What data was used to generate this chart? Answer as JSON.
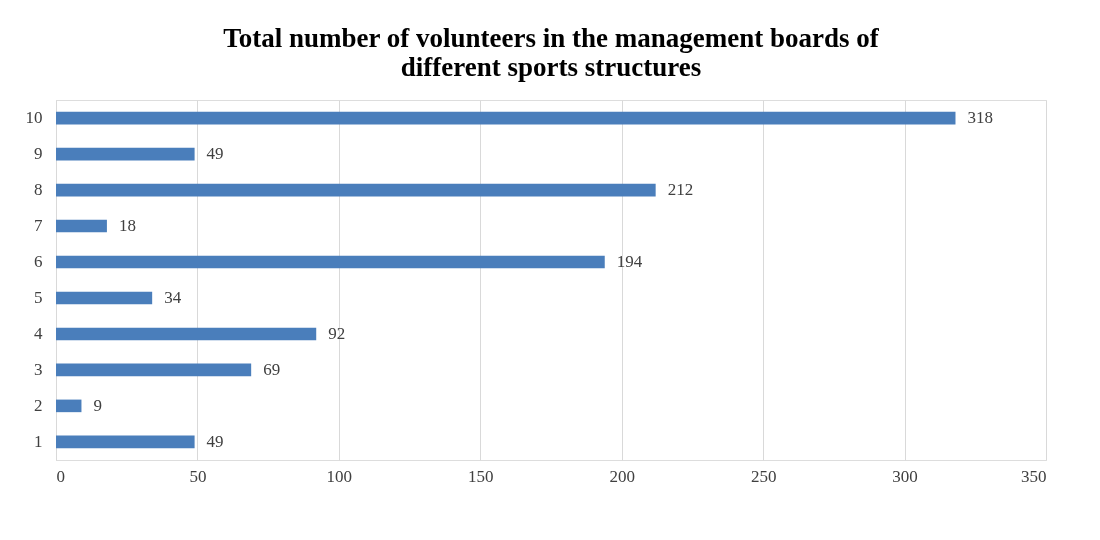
{
  "chart_data": {
    "type": "bar",
    "orientation": "horizontal",
    "title": "Total number of volunteers in the management boards of different sports structures",
    "categories": [
      "10",
      "9",
      "8",
      "7",
      "6",
      "5",
      "4",
      "3",
      "2",
      "1"
    ],
    "values": [
      318,
      49,
      212,
      18,
      194,
      34,
      92,
      69,
      9,
      49
    ],
    "color": "#4a7ebb",
    "xlim": [
      0,
      350
    ],
    "xticks": [
      0,
      50,
      100,
      150,
      200,
      250,
      300,
      350
    ],
    "grid": "x",
    "data_labels": true
  }
}
